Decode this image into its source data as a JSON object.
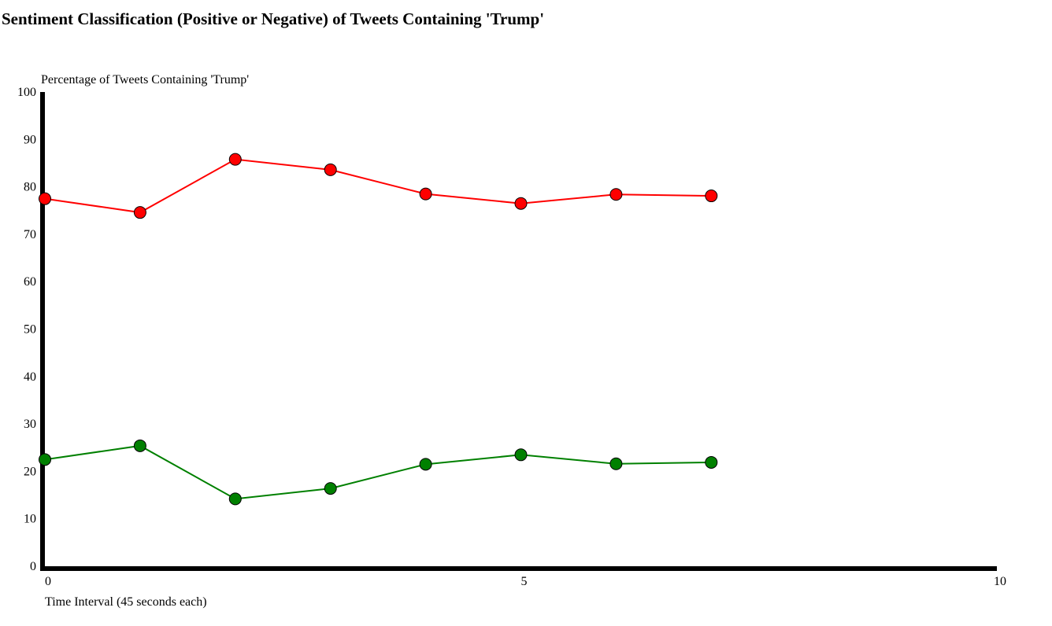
{
  "chart_data": {
    "type": "line",
    "title": "Sentiment Classification (Positive or Negative) of Tweets Containing 'Trump'",
    "ylabel": "Percentage of Tweets Containing 'Trump'",
    "xlabel": "Time Interval (45 seconds each)",
    "xlim": [
      0,
      10
    ],
    "ylim": [
      0,
      100
    ],
    "x_ticks": [
      0,
      5,
      10
    ],
    "y_ticks": [
      0,
      10,
      20,
      30,
      40,
      50,
      60,
      70,
      80,
      90,
      100
    ],
    "grid": false,
    "legend": "none",
    "x": [
      0,
      1,
      2,
      3,
      4,
      5,
      6,
      7
    ],
    "series": [
      {
        "color": "#ff0000",
        "values": [
          77.5,
          74.6,
          85.8,
          83.6,
          78.5,
          76.5,
          78.4,
          78.1
        ]
      },
      {
        "color": "#008000",
        "values": [
          22.5,
          25.4,
          14.2,
          16.4,
          21.5,
          23.5,
          21.6,
          21.9
        ]
      }
    ]
  }
}
